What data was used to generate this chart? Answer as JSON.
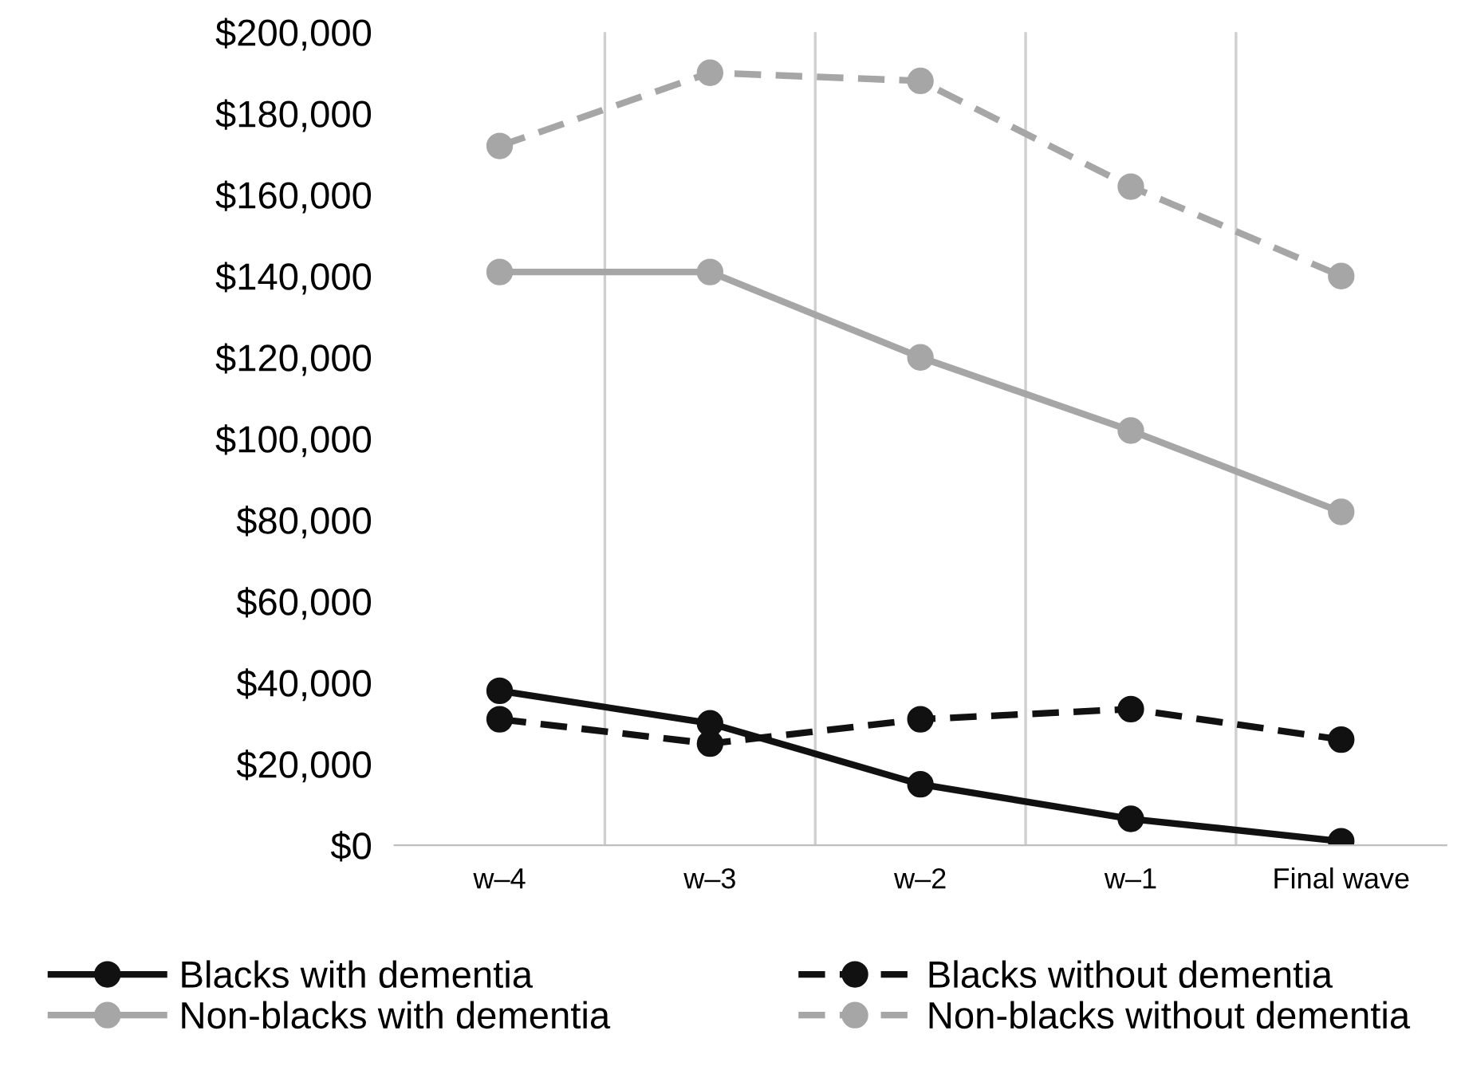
{
  "chart_data": {
    "type": "line",
    "categories": [
      "w–4",
      "w–3",
      "w–2",
      "w–1",
      "Final wave"
    ],
    "series": [
      {
        "name": "Blacks with dementia",
        "color": "#111111",
        "line_style": "solid",
        "values": [
          38000,
          30000,
          15000,
          6500,
          1000
        ]
      },
      {
        "name": "Blacks without dementia",
        "color": "#111111",
        "line_style": "dashed",
        "values": [
          31000,
          25000,
          31000,
          33500,
          26000
        ]
      },
      {
        "name": "Non-blacks with dementia",
        "color": "#a6a6a6",
        "line_style": "solid",
        "values": [
          141000,
          141000,
          120000,
          102000,
          82000
        ]
      },
      {
        "name": "Non-blacks without dementia",
        "color": "#a6a6a6",
        "line_style": "dashed",
        "values": [
          172000,
          190000,
          188000,
          162000,
          140000
        ]
      }
    ],
    "ylim": [
      0,
      200000
    ],
    "yticks": [
      {
        "value": 0,
        "label": "$0"
      },
      {
        "value": 20000,
        "label": "$20,000"
      },
      {
        "value": 40000,
        "label": "$40,000"
      },
      {
        "value": 60000,
        "label": "$60,000"
      },
      {
        "value": 80000,
        "label": "$80,000"
      },
      {
        "value": 100000,
        "label": "$100,000"
      },
      {
        "value": 120000,
        "label": "$120,000"
      },
      {
        "value": 140000,
        "label": "$140,000"
      },
      {
        "value": 160000,
        "label": "$160,000"
      },
      {
        "value": 180000,
        "label": "$180,000"
      },
      {
        "value": 200000,
        "label": "$200,000"
      }
    ],
    "grid": "x",
    "legend": "bottom",
    "marker": "circle"
  }
}
